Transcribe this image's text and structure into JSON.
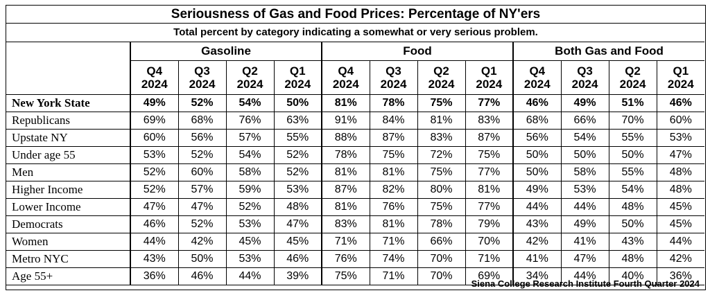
{
  "title": "Seriousness of Gas and Food Prices:  Percentage of NY'ers",
  "subtitle": "Total percent by category indicating a somewhat or very serious problem.",
  "footer": "Siena College Research Institute Fourth Quarter 2024",
  "chart_data": {
    "type": "table",
    "groups": [
      "Gasoline",
      "Food",
      "Both Gas and Food"
    ],
    "periods": [
      {
        "q": "Q4",
        "y": "2024"
      },
      {
        "q": "Q3",
        "y": "2024"
      },
      {
        "q": "Q2",
        "y": "2024"
      },
      {
        "q": "Q1",
        "y": "2024"
      }
    ],
    "rows": [
      {
        "label": "New York State",
        "highlight": true,
        "values": [
          "49%",
          "52%",
          "54%",
          "50%",
          "81%",
          "78%",
          "75%",
          "77%",
          "46%",
          "49%",
          "51%",
          "46%"
        ]
      },
      {
        "label": "Republicans",
        "values": [
          "69%",
          "68%",
          "76%",
          "63%",
          "91%",
          "84%",
          "81%",
          "83%",
          "68%",
          "66%",
          "70%",
          "60%"
        ]
      },
      {
        "label": "Upstate NY",
        "values": [
          "60%",
          "56%",
          "57%",
          "55%",
          "88%",
          "87%",
          "83%",
          "87%",
          "56%",
          "54%",
          "55%",
          "53%"
        ]
      },
      {
        "label": "Under age 55",
        "values": [
          "53%",
          "52%",
          "54%",
          "52%",
          "78%",
          "75%",
          "72%",
          "75%",
          "50%",
          "50%",
          "50%",
          "47%"
        ]
      },
      {
        "label": "Men",
        "values": [
          "52%",
          "60%",
          "58%",
          "52%",
          "81%",
          "81%",
          "75%",
          "77%",
          "50%",
          "58%",
          "55%",
          "48%"
        ]
      },
      {
        "label": "Higher Income",
        "values": [
          "52%",
          "57%",
          "59%",
          "53%",
          "87%",
          "82%",
          "80%",
          "81%",
          "49%",
          "53%",
          "54%",
          "48%"
        ]
      },
      {
        "label": "Lower Income",
        "values": [
          "47%",
          "47%",
          "52%",
          "48%",
          "81%",
          "76%",
          "75%",
          "77%",
          "44%",
          "44%",
          "48%",
          "45%"
        ]
      },
      {
        "label": "Democrats",
        "values": [
          "46%",
          "52%",
          "53%",
          "47%",
          "83%",
          "81%",
          "78%",
          "79%",
          "43%",
          "49%",
          "50%",
          "45%"
        ]
      },
      {
        "label": "Women",
        "values": [
          "44%",
          "42%",
          "45%",
          "45%",
          "71%",
          "71%",
          "66%",
          "70%",
          "42%",
          "41%",
          "43%",
          "44%"
        ]
      },
      {
        "label": "Metro NYC",
        "values": [
          "43%",
          "50%",
          "53%",
          "46%",
          "76%",
          "74%",
          "70%",
          "71%",
          "41%",
          "47%",
          "48%",
          "42%"
        ]
      },
      {
        "label": "Age 55+",
        "values": [
          "36%",
          "46%",
          "44%",
          "39%",
          "75%",
          "71%",
          "70%",
          "69%",
          "34%",
          "44%",
          "40%",
          "36%"
        ]
      }
    ]
  }
}
